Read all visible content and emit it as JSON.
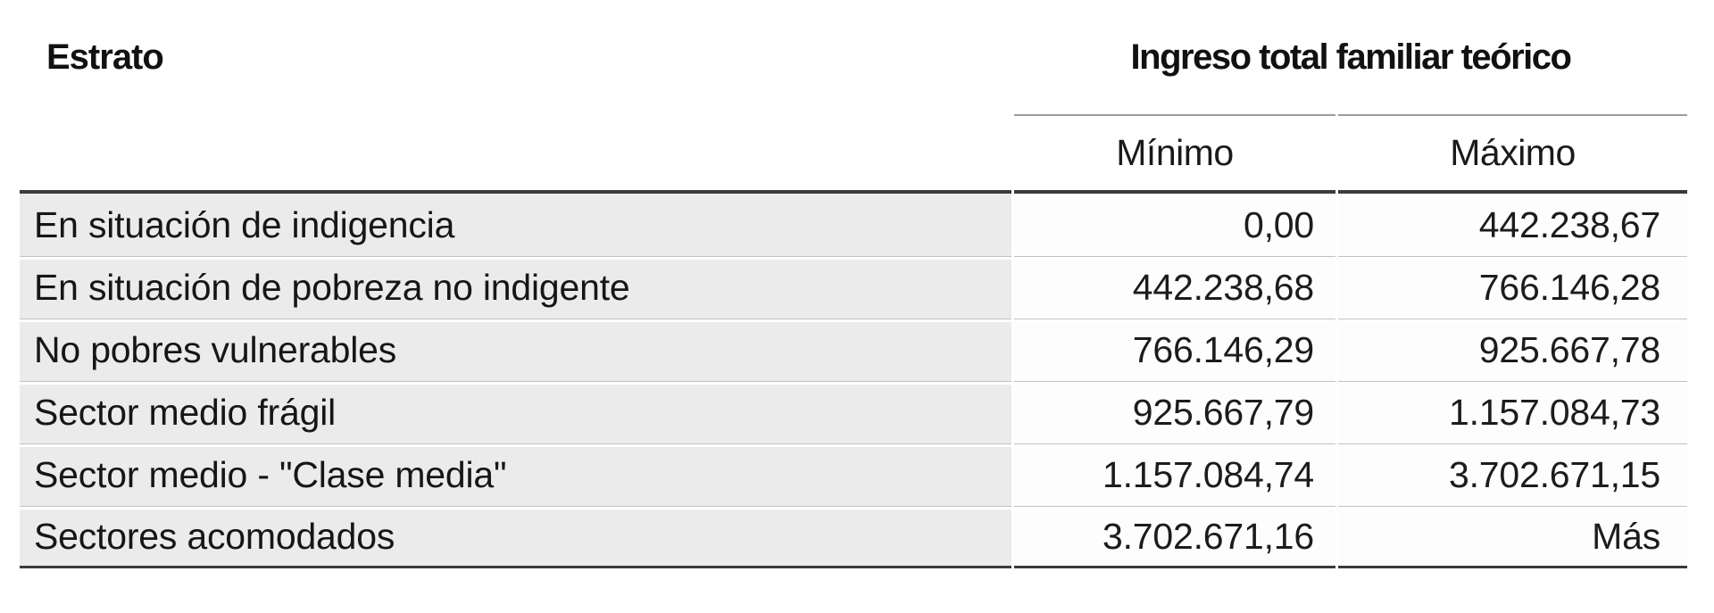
{
  "chart_data": {
    "type": "table",
    "title": "Ingreso total familiar teórico",
    "columns": [
      "Estrato",
      "Mínimo",
      "Máximo"
    ],
    "column_group_header": "Ingreso total familiar teórico",
    "col_headers": {
      "stratum": "Estrato",
      "min": "Mínimo",
      "max": "Máximo"
    },
    "rows": [
      {
        "label": "En situación de indigencia",
        "min": "0,00",
        "max": "442.238,67"
      },
      {
        "label": "En situación de pobreza no indigente",
        "min": "442.238,68",
        "max": "766.146,28"
      },
      {
        "label": "No pobres vulnerables",
        "min": "766.146,29",
        "max": "925.667,78"
      },
      {
        "label": "Sector medio frágil",
        "min": "925.667,79",
        "max": "1.157.084,73"
      },
      {
        "label": "Sector medio - \"Clase media\"",
        "min": "1.157.084,74",
        "max": "3.702.671,15"
      },
      {
        "label": "Sectores acomodados",
        "min": "3.702.671,16",
        "max": "Más"
      }
    ],
    "layout": {
      "grouped_columns": [
        "Mínimo",
        "Máximo"
      ],
      "numeric_alignment": "right",
      "grid": "horizontal-rules-only"
    }
  },
  "colors": {
    "page_background": "#ffffff",
    "row_label_background": "#ebebeb",
    "numeric_cell_background": "#fdfdfd",
    "heavy_rule": "#3b3b3b",
    "group_header_rule": "#9c9c9c",
    "row_hairline": "#c2c2c2",
    "text": "#161616"
  }
}
